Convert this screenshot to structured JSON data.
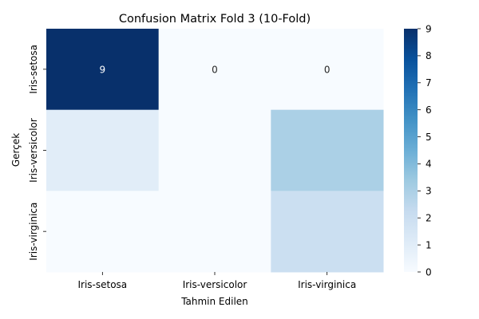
{
  "chart_data": {
    "type": "heatmap",
    "title": "Confusion Matrix Fold 3 (10-Fold)",
    "xlabel": "Tahmin Edilen",
    "ylabel": "Gerçek",
    "x_categories": [
      "Iris-setosa",
      "Iris-versicolor",
      "Iris-virginica"
    ],
    "y_categories": [
      "Iris-setosa",
      "Iris-versicolor",
      "Iris-virginica"
    ],
    "values": [
      [
        9,
        0,
        0
      ],
      [
        1,
        0,
        3
      ],
      [
        0,
        0,
        2
      ]
    ],
    "annotations": [
      [
        "9",
        "0",
        "0"
      ],
      [
        "",
        "",
        ""
      ],
      [
        "",
        "",
        ""
      ]
    ],
    "colorbar": {
      "min": 0,
      "max": 9,
      "ticks": [
        "0",
        "1",
        "2",
        "3",
        "4",
        "5",
        "6",
        "7",
        "8",
        "9"
      ]
    },
    "colormap": "Blues",
    "colors": {
      "low": "#f7fbff",
      "high": "#08306b"
    }
  }
}
